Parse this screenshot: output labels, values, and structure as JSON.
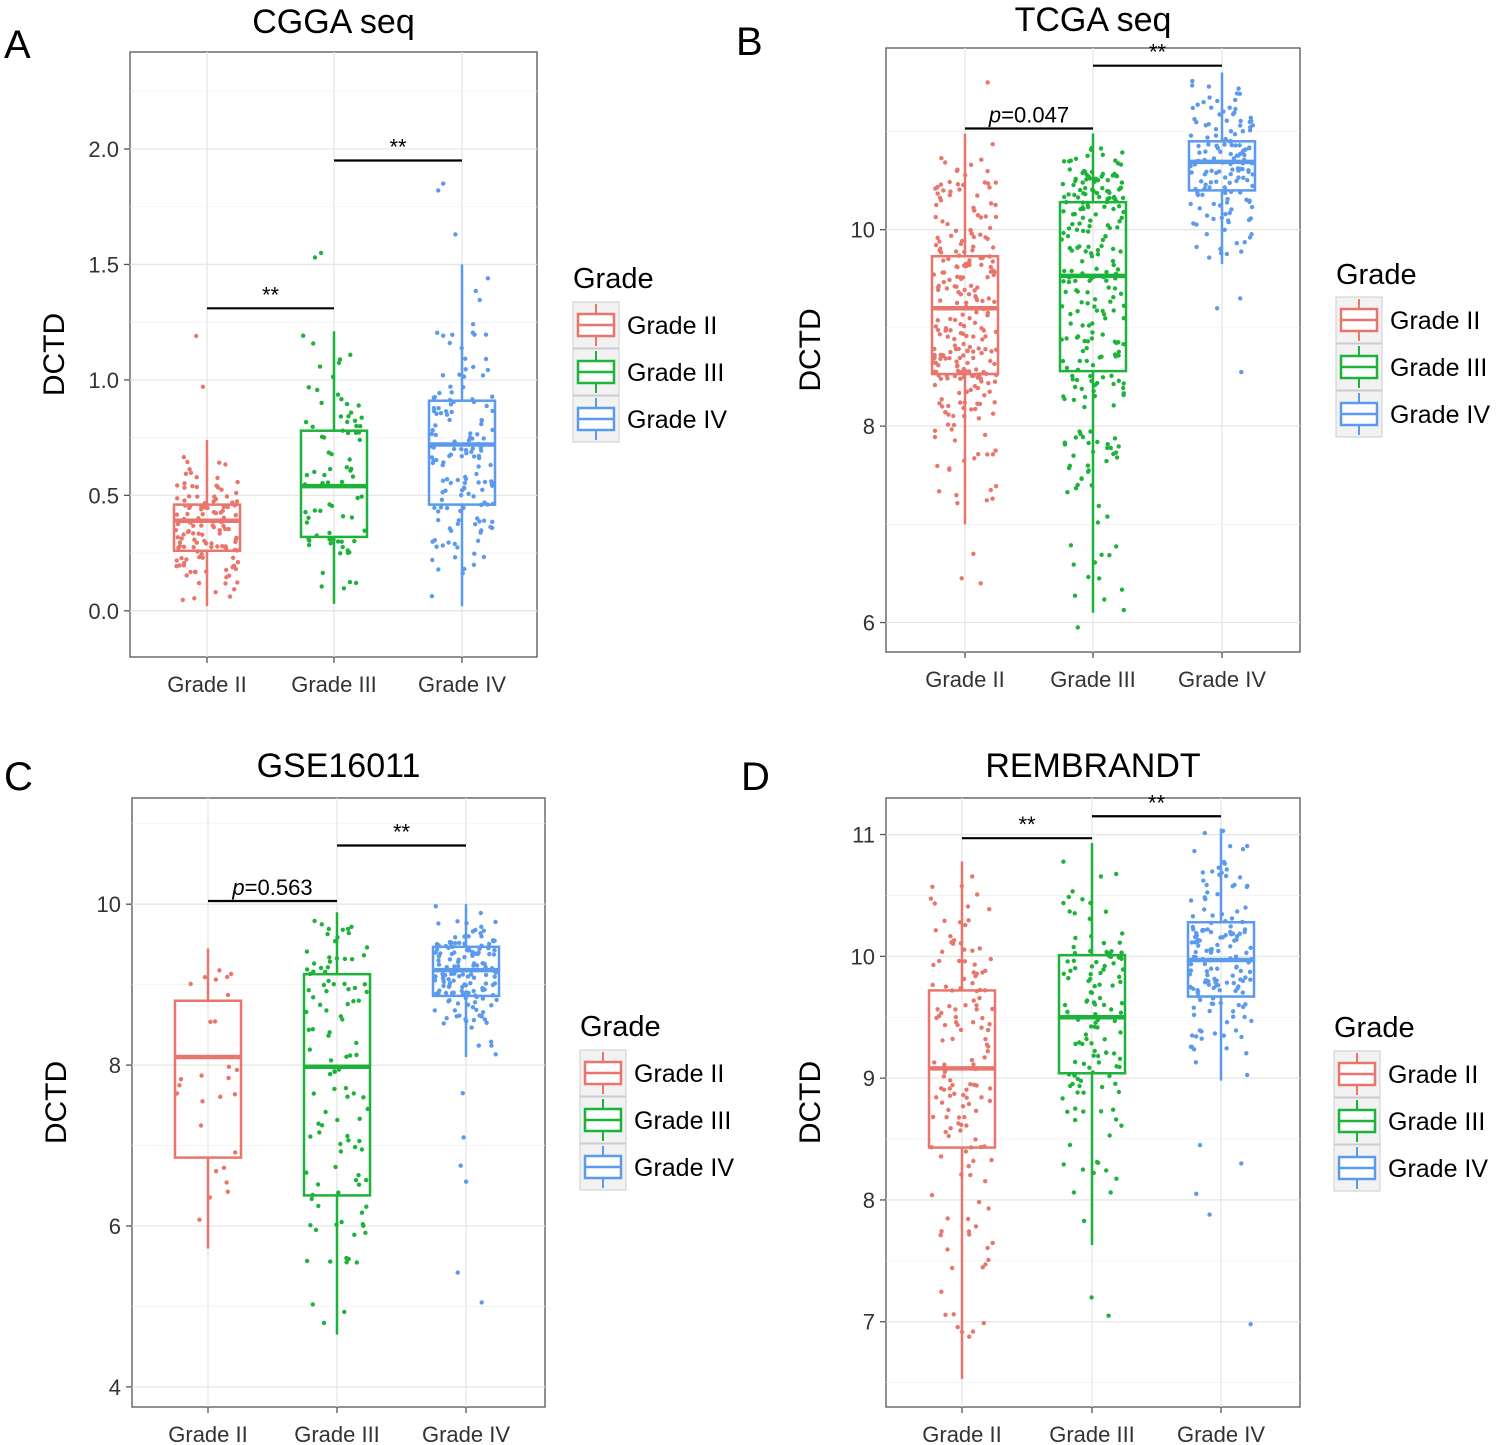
{
  "colors": {
    "Grade II": "#e8766d",
    "Grade III": "#1db33a",
    "Grade IV": "#5b9aed"
  },
  "legend_title": "Grade",
  "chart_data": [
    {
      "panel": "A",
      "type": "box",
      "title": "CGGA seq",
      "xlabel": "",
      "ylabel": "DCTD",
      "categories": [
        "Grade II",
        "Grade III",
        "Grade IV"
      ],
      "ylim": [
        -0.2,
        2.42
      ],
      "yticks": [
        0.0,
        0.5,
        1.0,
        1.5,
        2.0
      ],
      "tick_labels": [
        "0.0",
        "0.5",
        "1.0",
        "1.5",
        "2.0"
      ],
      "boxes": [
        {
          "name": "Grade II",
          "q1": 0.26,
          "median": 0.39,
          "q3": 0.46,
          "whisker_low": 0.02,
          "whisker_high": 0.74,
          "n": 130,
          "outliers": [
            0.97,
            1.19
          ]
        },
        {
          "name": "Grade III",
          "q1": 0.32,
          "median": 0.54,
          "q3": 0.78,
          "whisker_low": 0.03,
          "whisker_high": 1.21,
          "n": 80,
          "outliers": [
            1.55,
            1.53
          ]
        },
        {
          "name": "Grade IV",
          "q1": 0.46,
          "median": 0.72,
          "q3": 0.91,
          "whisker_low": 0.02,
          "whisker_high": 1.5,
          "n": 150,
          "outliers": [
            1.63,
            1.82,
            1.85
          ]
        }
      ],
      "brackets": [
        {
          "from": 0,
          "to": 1,
          "y": 1.31,
          "label": "**"
        },
        {
          "from": 1,
          "to": 2,
          "y": 1.95,
          "label": "**"
        }
      ]
    },
    {
      "panel": "B",
      "type": "box",
      "title": "TCGA seq",
      "xlabel": "",
      "ylabel": "DCTD",
      "categories": [
        "Grade II",
        "Grade III",
        "Grade IV"
      ],
      "ylim": [
        5.7,
        11.85
      ],
      "yticks": [
        6,
        8,
        10
      ],
      "tick_labels": [
        "6",
        "8",
        "10"
      ],
      "boxes": [
        {
          "name": "Grade II",
          "q1": 8.53,
          "median": 9.2,
          "q3": 9.73,
          "whisker_low": 7.0,
          "whisker_high": 10.98,
          "n": 260,
          "outliers": [
            11.5,
            6.45,
            6.4,
            6.7
          ]
        },
        {
          "name": "Grade III",
          "q1": 8.56,
          "median": 9.53,
          "q3": 10.28,
          "whisker_low": 6.1,
          "whisker_high": 10.98,
          "n": 260,
          "outliers": [
            5.95
          ]
        },
        {
          "name": "Grade IV",
          "q1": 10.4,
          "median": 10.69,
          "q3": 10.9,
          "whisker_low": 9.65,
          "whisker_high": 11.6,
          "n": 150,
          "outliers": [
            9.2,
            9.3,
            8.55
          ]
        }
      ],
      "brackets": [
        {
          "from": 0,
          "to": 1,
          "y": 11.03,
          "label": "p=0.047",
          "italic_prefix": "p"
        },
        {
          "from": 1,
          "to": 2,
          "y": 11.67,
          "label": "**"
        }
      ]
    },
    {
      "panel": "C",
      "type": "box",
      "title": "GSE16011",
      "xlabel": "",
      "ylabel": "DCTD",
      "categories": [
        "Grade II",
        "Grade III",
        "Grade IV"
      ],
      "ylim": [
        3.75,
        11.32
      ],
      "yticks": [
        4,
        6,
        8,
        10
      ],
      "tick_labels": [
        "4",
        "6",
        "8",
        "10"
      ],
      "boxes": [
        {
          "name": "Grade II",
          "q1": 6.85,
          "median": 8.1,
          "q3": 8.8,
          "whisker_low": 5.72,
          "whisker_high": 9.45,
          "n": 28,
          "outliers": []
        },
        {
          "name": "Grade III",
          "q1": 6.38,
          "median": 7.98,
          "q3": 9.13,
          "whisker_low": 4.65,
          "whisker_high": 9.9,
          "n": 110,
          "outliers": []
        },
        {
          "name": "Grade IV",
          "q1": 8.86,
          "median": 9.18,
          "q3": 9.47,
          "whisker_low": 8.1,
          "whisker_high": 10.0,
          "n": 150,
          "outliers": [
            7.65,
            7.1,
            6.75,
            6.55,
            5.42,
            5.05
          ]
        }
      ],
      "brackets": [
        {
          "from": 0,
          "to": 1,
          "y": 10.04,
          "label": "p=0.563",
          "italic_prefix": "p"
        },
        {
          "from": 1,
          "to": 2,
          "y": 10.73,
          "label": "**"
        }
      ]
    },
    {
      "panel": "D",
      "type": "box",
      "title": "REMBRANDT",
      "xlabel": "",
      "ylabel": "DCTD",
      "categories": [
        "Grade II",
        "Grade III",
        "Grade IV"
      ],
      "ylim": [
        6.3,
        11.3
      ],
      "yticks": [
        7,
        8,
        9,
        10,
        11
      ],
      "tick_labels": [
        "7",
        "8",
        "9",
        "10",
        "11"
      ],
      "boxes": [
        {
          "name": "Grade II",
          "q1": 8.43,
          "median": 9.08,
          "q3": 9.72,
          "whisker_low": 6.53,
          "whisker_high": 10.78,
          "n": 150,
          "outliers": []
        },
        {
          "name": "Grade III",
          "q1": 9.04,
          "median": 9.5,
          "q3": 10.01,
          "whisker_low": 7.63,
          "whisker_high": 10.93,
          "n": 130,
          "outliers": [
            7.05,
            7.2
          ]
        },
        {
          "name": "Grade IV",
          "q1": 9.67,
          "median": 9.97,
          "q3": 10.28,
          "whisker_low": 8.98,
          "whisker_high": 11.05,
          "n": 160,
          "outliers": [
            8.45,
            8.3,
            8.05,
            7.88,
            6.98
          ]
        }
      ],
      "brackets": [
        {
          "from": 0,
          "to": 1,
          "y": 10.97,
          "label": "**"
        },
        {
          "from": 1,
          "to": 2,
          "y": 11.15,
          "label": "**"
        }
      ]
    }
  ]
}
